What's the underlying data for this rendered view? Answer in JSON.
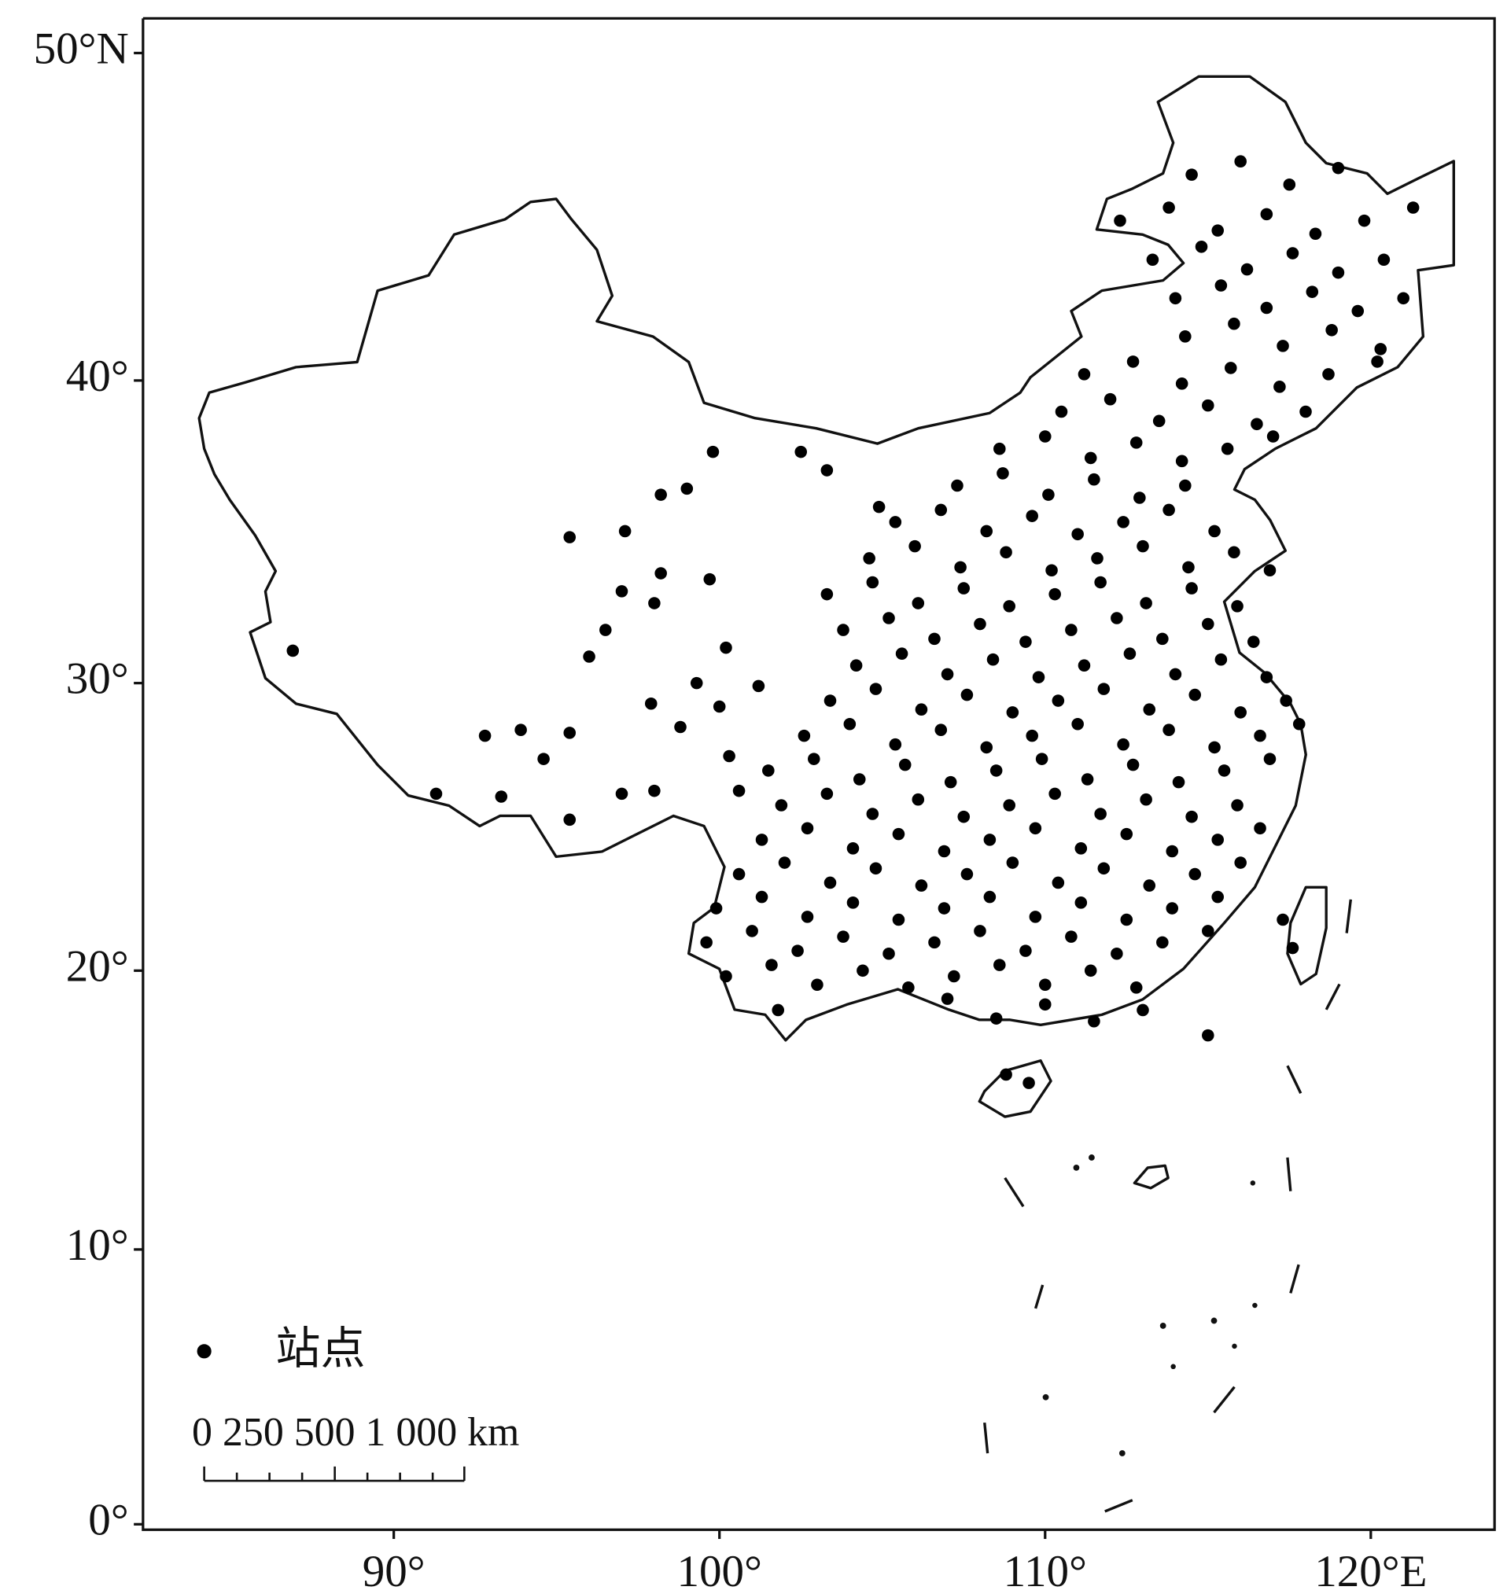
{
  "chart_data": {
    "type": "scatter",
    "xlim": [
      82.3,
      123.8
    ],
    "ylim": [
      -0.2,
      51
    ],
    "xticks": [
      {
        "value": 90,
        "label": "90°"
      },
      {
        "value": 100,
        "label": "100°"
      },
      {
        "value": 110,
        "label": "110°"
      },
      {
        "value": 120,
        "label": "120°E"
      }
    ],
    "yticks": [
      {
        "value": 0,
        "label": "0°"
      },
      {
        "value": 10,
        "label": "10°"
      },
      {
        "value": 20,
        "label": "20°"
      },
      {
        "value": 30,
        "label": "30°"
      },
      {
        "value": 40,
        "label": "40°"
      },
      {
        "value": 50,
        "label": "50°N"
      }
    ],
    "annotations": [
      "0 250 500 1 000 km"
    ],
    "series": [
      {
        "name": "站点",
        "color": "#000000",
        "x": [
          101.8,
          107,
          108.5,
          110,
          111.5,
          113,
          100.2,
          101.6,
          103,
          104.4,
          105.8,
          107.2,
          108.6,
          110,
          111.4,
          112.8,
          99.6,
          101,
          102.4,
          103.8,
          105.2,
          106.6,
          108,
          109.4,
          110.8,
          112.2,
          113.6,
          115,
          99.9,
          101.3,
          102.7,
          104.1,
          105.5,
          106.9,
          108.3,
          109.7,
          111.1,
          112.5,
          113.9,
          115.3,
          100.6,
          102,
          103.4,
          104.8,
          106.2,
          107.6,
          109,
          110.4,
          111.8,
          113.2,
          114.6,
          116,
          101.3,
          102.7,
          104.1,
          105.5,
          106.9,
          108.3,
          109.7,
          111.1,
          112.5,
          113.9,
          115.3,
          116.6,
          101.9,
          103.3,
          104.7,
          106.1,
          107.5,
          108.9,
          110.3,
          111.7,
          113.1,
          114.5,
          115.9,
          101.5,
          102.9,
          104.3,
          105.7,
          107.1,
          108.5,
          109.9,
          111.3,
          112.7,
          114.1,
          115.5,
          116.9,
          102.6,
          104,
          105.4,
          106.8,
          108.2,
          109.6,
          111,
          112.4,
          113.8,
          115.2,
          116.6,
          117.8,
          103.4,
          104.8,
          106.2,
          107.6,
          109,
          110.4,
          111.8,
          113.2,
          114.6,
          116,
          117.4,
          104.2,
          105.6,
          107,
          108.4,
          109.8,
          111.2,
          112.6,
          114,
          115.4,
          116.8,
          103.8,
          105.2,
          106.6,
          108,
          109.4,
          110.8,
          112.2,
          113.6,
          115,
          116.4,
          103.3,
          104.7,
          106.1,
          107.5,
          108.9,
          110.3,
          111.7,
          113.1,
          114.5,
          115.9,
          104.6,
          106,
          107.4,
          108.8,
          110.2,
          111.6,
          113,
          114.4,
          115.8,
          116.9,
          105.4,
          106.8,
          108.2,
          109.6,
          111,
          112.4,
          113.8,
          115.2,
          107.3,
          108.7,
          110.1,
          111.5,
          112.9,
          114.3,
          108.6,
          110,
          111.4,
          112.8,
          114.2,
          115.6,
          117,
          110.5,
          112,
          113.5,
          115,
          116.5,
          118,
          111.2,
          112.7,
          114.2,
          115.7,
          117.2,
          118.7,
          120.2,
          114.3,
          115.8,
          117.3,
          118.8,
          120.3,
          114,
          115.4,
          116.8,
          118.2,
          119.6,
          121,
          113.3,
          114.8,
          116.2,
          117.6,
          119,
          120.4,
          112.3,
          113.8,
          115.3,
          116.8,
          118.3,
          119.8,
          121.3,
          114.5,
          116,
          117.5,
          119,
          108.8,
          109.5,
          117.3,
          117.6,
          115,
          86.9,
          91.3,
          92.8,
          93.9,
          93.3,
          94.6,
          95.4,
          95.4,
          95.4,
          96,
          96.5,
          97,
          97.1,
          97,
          98,
          98.2,
          98.2,
          99,
          99.8,
          99.7,
          100.2,
          98,
          97.9,
          98.8,
          99.3,
          100,
          100.6,
          100.3,
          101.2,
          102.5,
          103.3,
          104.9
        ],
        "y": [
          18.6,
          19.0,
          18.3,
          18.8,
          18.2,
          18.6,
          19.8,
          20.2,
          19.5,
          20.0,
          19.4,
          19.8,
          20.2,
          19.5,
          20.0,
          19.4,
          21.0,
          21.4,
          20.7,
          21.2,
          20.6,
          21.0,
          21.4,
          20.7,
          21.2,
          20.6,
          21.0,
          21.4,
          22.2,
          22.6,
          21.9,
          22.4,
          21.8,
          22.2,
          22.6,
          21.9,
          22.4,
          21.8,
          22.2,
          22.6,
          23.4,
          23.8,
          23.1,
          23.6,
          23.0,
          23.4,
          23.8,
          23.1,
          23.6,
          23.0,
          23.4,
          23.8,
          24.6,
          25.0,
          24.3,
          24.8,
          24.2,
          24.6,
          25.0,
          24.3,
          24.8,
          24.2,
          24.6,
          25.0,
          25.8,
          26.2,
          25.5,
          26.0,
          25.4,
          25.8,
          26.2,
          25.5,
          26.0,
          25.4,
          25.8,
          27.0,
          27.4,
          26.7,
          27.2,
          26.6,
          27.0,
          27.4,
          26.7,
          27.2,
          26.6,
          27.0,
          27.4,
          28.2,
          28.6,
          27.9,
          28.4,
          27.8,
          28.2,
          28.6,
          27.9,
          28.4,
          27.8,
          28.2,
          28.6,
          29.4,
          29.8,
          29.1,
          29.6,
          29.0,
          29.4,
          29.8,
          29.1,
          29.6,
          29.0,
          29.4,
          30.6,
          31.0,
          30.3,
          30.8,
          30.2,
          30.6,
          31.0,
          30.3,
          30.8,
          30.2,
          31.8,
          32.2,
          31.5,
          32.0,
          31.4,
          31.8,
          32.2,
          31.5,
          32.0,
          31.4,
          33.0,
          33.4,
          32.7,
          33.2,
          32.6,
          33.0,
          33.4,
          32.7,
          33.2,
          32.6,
          34.2,
          34.6,
          33.9,
          34.4,
          33.8,
          34.2,
          34.6,
          33.9,
          34.4,
          33.8,
          35.4,
          35.8,
          35.1,
          35.6,
          35.0,
          35.4,
          35.8,
          35.1,
          36.6,
          37.0,
          36.3,
          36.8,
          36.2,
          36.6,
          37.8,
          38.2,
          37.5,
          38.0,
          37.4,
          37.8,
          38.2,
          39.0,
          39.4,
          38.7,
          39.2,
          38.6,
          39.0,
          40.2,
          40.6,
          39.9,
          40.4,
          39.8,
          40.2,
          40.6,
          41.4,
          41.8,
          41.1,
          41.6,
          41.0,
          42.6,
          43.0,
          42.3,
          42.8,
          42.2,
          42.6,
          43.8,
          44.2,
          43.5,
          44.0,
          43.4,
          43.8,
          45.0,
          45.4,
          44.7,
          45.2,
          44.6,
          45.0,
          45.4,
          46.4,
          46.8,
          46.1,
          46.6,
          16.3,
          16.0,
          21.8,
          20.8,
          17.7,
          31.1,
          26.2,
          28.2,
          28.4,
          26.1,
          27.4,
          34.9,
          28.3,
          25.3,
          30.9,
          31.8,
          33.1,
          35.1,
          26.2,
          32.7,
          33.7,
          36.3,
          36.5,
          37.7,
          33.5,
          31.2,
          26.3,
          29.3,
          28.5,
          30.0,
          29.2,
          26.3,
          27.5,
          29.9,
          37.7,
          37.1,
          35.9
        ]
      }
    ]
  }
}
